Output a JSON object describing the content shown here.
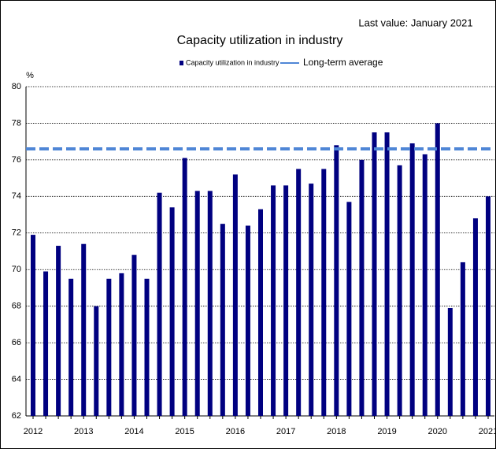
{
  "chart_data": {
    "type": "bar",
    "title": "Capacity utilization in industry",
    "annotation": "Last value: January 2021",
    "y_label": "%",
    "categories": [
      "2012",
      null,
      null,
      null,
      "2013",
      null,
      null,
      null,
      "2014",
      null,
      null,
      null,
      "2015",
      null,
      null,
      null,
      "2016",
      null,
      null,
      null,
      "2017",
      null,
      null,
      null,
      "2018",
      null,
      null,
      null,
      "2019",
      null,
      null,
      null,
      "2020",
      null,
      null,
      null,
      "2021"
    ],
    "series": [
      {
        "name": "Capacity utilization in industry",
        "color": "#000080",
        "values": [
          71.9,
          69.9,
          71.3,
          69.5,
          71.4,
          68.0,
          69.5,
          69.8,
          70.8,
          69.5,
          74.2,
          73.4,
          76.1,
          74.3,
          74.3,
          72.5,
          75.2,
          72.4,
          73.3,
          74.6,
          74.6,
          75.5,
          74.7,
          75.5,
          76.8,
          73.7,
          76.0,
          77.5,
          77.5,
          75.7,
          76.9,
          76.3,
          78.0,
          67.9,
          70.4,
          72.8,
          74.0
        ]
      }
    ],
    "reference_line": {
      "name": "Long-term average",
      "value": 76.6,
      "color": "#4f86d6"
    },
    "ylim": [
      62,
      80
    ],
    "yticks": [
      62,
      64,
      66,
      68,
      70,
      72,
      74,
      76,
      78,
      80
    ],
    "grid": true
  }
}
